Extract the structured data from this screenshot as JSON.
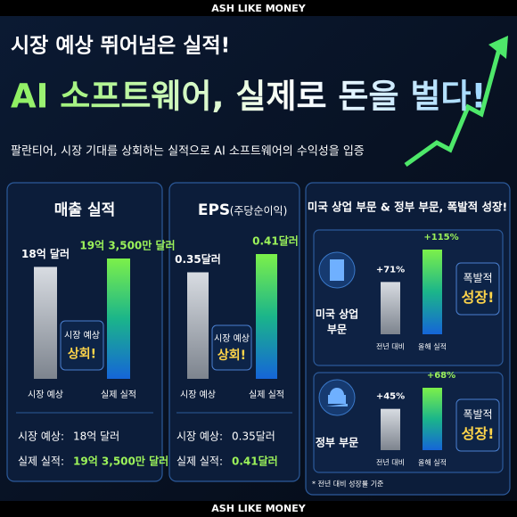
{
  "header": {
    "brand": "ASH LIKE MONEY",
    "title_line1": "시장 예상 뛰어넘은 실적!",
    "title_line2": "AI 소프트웨어, 실제로 돈을 벌다!",
    "subtitle": "팔란티어, 시장 기대를 상회하는 실적으로 AI 소프트웨어의 수익성을 입증"
  },
  "revenue": {
    "title": "매출 실적",
    "bars": [
      {
        "category": "시장 예상",
        "value": 1800000000,
        "label": "18억 달러"
      },
      {
        "category": "실제 실적",
        "value": 1935000000,
        "label": "19억 3,500만 달러"
      }
    ],
    "badge": [
      "시장 예상",
      "상회!"
    ],
    "summary": [
      [
        "시장 예상:",
        "18억 달러"
      ],
      [
        "실제 실적:",
        "19억 3,500만 달러"
      ]
    ]
  },
  "eps": {
    "title": "EPS",
    "title_note": "(주당순이익)",
    "bars": [
      {
        "category": "시장 예상",
        "value": 0.35,
        "label": "0.35달러"
      },
      {
        "category": "실제 실적",
        "value": 0.41,
        "label": "0.41달러"
      }
    ],
    "badge": [
      "시장 예상",
      "상회!"
    ],
    "summary": [
      [
        "시장 예상:",
        "0.35달러"
      ],
      [
        "실제 실적:",
        "0.41달러"
      ]
    ]
  },
  "segments": {
    "title": "미국 상업 부문 & 정부 부문, 폭발적 성장!",
    "rows": [
      {
        "name": [
          "미국 상업",
          "부문"
        ],
        "bars": [
          {
            "category": "전년 대비",
            "value": 71,
            "label": "+71%"
          },
          {
            "category": "올해 실적",
            "value": 115,
            "label": "+115%"
          }
        ],
        "badge": [
          "폭발적",
          "성장!"
        ]
      },
      {
        "name": [
          "정부 부문"
        ],
        "bars": [
          {
            "category": "전년 대비",
            "value": 45,
            "label": "+45%"
          },
          {
            "category": "올해 실적",
            "value": 68,
            "label": "+68%"
          }
        ],
        "badge": [
          "폭발적",
          "성장!"
        ]
      }
    ],
    "footnote": "* 전년 대비 성장률 기준"
  },
  "footer": "ASH LIKE MONEY"
}
